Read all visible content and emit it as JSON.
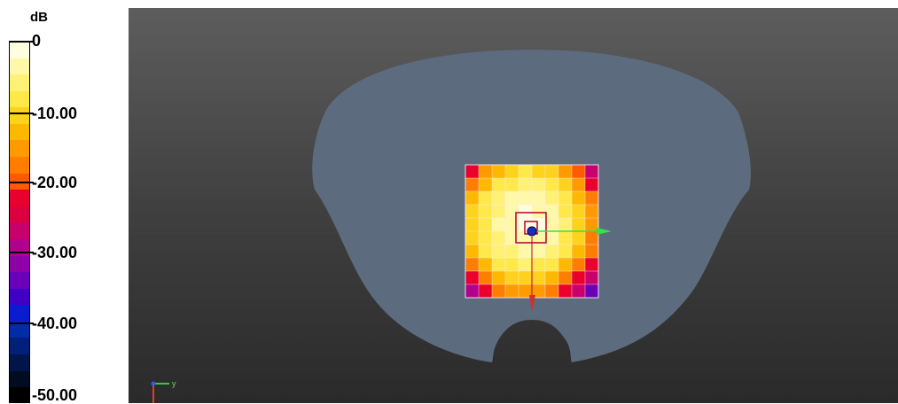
{
  "legend": {
    "unit": "dB",
    "ticks": [
      "0",
      "-10.00",
      "-20.00",
      "-30.00",
      "-40.00",
      "-50.00"
    ],
    "bands": [
      "#fffde0",
      "#fff8a8",
      "#fff176",
      "#ffe94a",
      "#ffd21e",
      "#ffb800",
      "#ff9a00",
      "#ff7e00",
      "#ff5a00",
      "#e9002c",
      "#dc0040",
      "#c8006c",
      "#b0008c",
      "#8e00a8",
      "#6a00b8",
      "#3f00c4",
      "#0a1ccf",
      "#002ca8",
      "#00207a",
      "#00164a",
      "#000c22",
      "#000000"
    ]
  },
  "viewport": {
    "background": "#4a4a4a",
    "phantom_color": "#5c6b7e",
    "axis_label_y": "y"
  },
  "heatmap": {
    "grid": [
      [
        0.45,
        0.3,
        0.22,
        0.18,
        0.16,
        0.17,
        0.2,
        0.27,
        0.4,
        0.52
      ],
      [
        0.32,
        0.22,
        0.16,
        0.12,
        0.1,
        0.11,
        0.14,
        0.2,
        0.3,
        0.42
      ],
      [
        0.24,
        0.16,
        0.11,
        0.07,
        0.05,
        0.06,
        0.09,
        0.15,
        0.24,
        0.34
      ],
      [
        0.2,
        0.13,
        0.08,
        0.04,
        0.02,
        0.03,
        0.06,
        0.12,
        0.2,
        0.3
      ],
      [
        0.19,
        0.12,
        0.07,
        0.03,
        0.0,
        0.02,
        0.05,
        0.11,
        0.19,
        0.29
      ],
      [
        0.2,
        0.13,
        0.08,
        0.04,
        0.03,
        0.04,
        0.07,
        0.13,
        0.21,
        0.31
      ],
      [
        0.24,
        0.16,
        0.11,
        0.08,
        0.06,
        0.07,
        0.1,
        0.16,
        0.25,
        0.35
      ],
      [
        0.31,
        0.22,
        0.16,
        0.13,
        0.11,
        0.12,
        0.16,
        0.22,
        0.32,
        0.43
      ],
      [
        0.42,
        0.32,
        0.24,
        0.2,
        0.18,
        0.19,
        0.24,
        0.31,
        0.42,
        0.54
      ],
      [
        0.56,
        0.44,
        0.34,
        0.29,
        0.27,
        0.28,
        0.33,
        0.42,
        0.54,
        0.66
      ]
    ]
  }
}
